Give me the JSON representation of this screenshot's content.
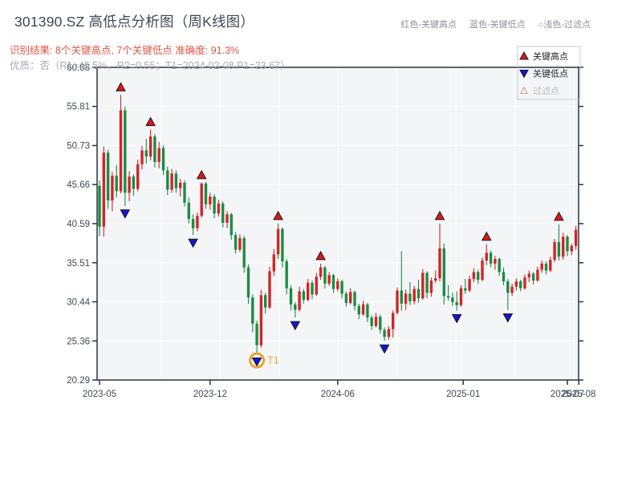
{
  "header": {
    "title": "301390.SZ 高低点分析图（周K线图）",
    "color_note": {
      "high": "红色-关键高点",
      "low": "蓝色-关键低点",
      "filter": "○浅色-过滤点"
    },
    "result_line": "识别结果: 8个关键高点, 7个关键低点  准确度: 91.3%",
    "quality_line": "优质：否（R1=45.5%，R2=0.55；T1=2024-02-08 P1=23.67）"
  },
  "chart_data": {
    "type": "candlestick",
    "title": "301390.SZ 高低点分析图（周K线图）",
    "symbol": "301390.SZ",
    "interval": "weekly",
    "accuracy": "91.3%",
    "key_high_count": 8,
    "key_low_count": 7,
    "ylim": [
      20.29,
      60.88
    ],
    "y_ticks": [
      60.88,
      55.81,
      50.73,
      45.66,
      40.59,
      35.51,
      30.44,
      25.36,
      20.29
    ],
    "x_ticks": [
      {
        "label": "2023-05",
        "index": 0
      },
      {
        "label": "2023-12",
        "index": 26
      },
      {
        "label": "2024-06",
        "index": 56
      },
      {
        "label": "2025-01",
        "index": 85.5
      },
      {
        "label": "2025-07",
        "index": 110
      },
      {
        "label": "2025-08",
        "index": 112.7
      }
    ],
    "grid": true,
    "legend": [
      {
        "label": "关键高点",
        "marker": "up-triangle",
        "color": "#e01616",
        "muted": false
      },
      {
        "label": "关键低点",
        "marker": "down-triangle",
        "color": "#1414d0",
        "muted": false
      },
      {
        "label": "过滤点",
        "marker": "open-triangle",
        "color": "#d4908c",
        "muted": true
      }
    ],
    "candles": [
      [
        45.5,
        46.2,
        39.0,
        40.2
      ],
      [
        40.2,
        50.6,
        38.9,
        49.8
      ],
      [
        49.8,
        50.2,
        42.5,
        43.6
      ],
      [
        43.6,
        47.3,
        42.2,
        46.8
      ],
      [
        46.8,
        48.2,
        44.0,
        44.8
      ],
      [
        44.8,
        57.3,
        44.5,
        55.3
      ],
      [
        55.3,
        55.8,
        42.9,
        44.6
      ],
      [
        44.6,
        47.4,
        43.5,
        46.7
      ],
      [
        46.7,
        47.0,
        44.2,
        45.1
      ],
      [
        45.1,
        48.9,
        44.8,
        48.3
      ],
      [
        48.3,
        50.7,
        47.6,
        50.1
      ],
      [
        50.1,
        51.6,
        48.4,
        49.3
      ],
      [
        49.3,
        52.8,
        48.8,
        51.9
      ],
      [
        51.9,
        52.2,
        47.9,
        48.6
      ],
      [
        48.6,
        51.2,
        47.8,
        50.4
      ],
      [
        50.4,
        50.8,
        46.9,
        47.5
      ],
      [
        47.5,
        48.0,
        44.3,
        45.0
      ],
      [
        45.0,
        47.7,
        44.6,
        47.1
      ],
      [
        47.1,
        47.5,
        44.6,
        45.2
      ],
      [
        45.2,
        46.4,
        44.1,
        45.9
      ],
      [
        45.9,
        46.2,
        42.8,
        43.3
      ],
      [
        43.3,
        44.0,
        40.6,
        41.2
      ],
      [
        41.2,
        41.8,
        39.1,
        40.0
      ],
      [
        40.0,
        42.0,
        39.6,
        41.6
      ],
      [
        41.6,
        45.9,
        41.4,
        45.8
      ],
      [
        45.8,
        46.0,
        42.5,
        43.1
      ],
      [
        43.1,
        44.6,
        42.4,
        44.1
      ],
      [
        44.1,
        44.4,
        41.3,
        41.9
      ],
      [
        41.9,
        43.7,
        41.5,
        43.2
      ],
      [
        43.2,
        43.5,
        40.1,
        40.7
      ],
      [
        40.7,
        42.2,
        40.0,
        41.8
      ],
      [
        41.8,
        42.0,
        38.5,
        39.1
      ],
      [
        39.1,
        39.5,
        36.7,
        37.2
      ],
      [
        37.2,
        39.2,
        36.9,
        38.7
      ],
      [
        38.7,
        39.0,
        34.2,
        34.9
      ],
      [
        34.9,
        35.3,
        30.2,
        31.0
      ],
      [
        31.0,
        31.4,
        26.5,
        27.6
      ],
      [
        27.6,
        28.0,
        23.67,
        24.8
      ],
      [
        24.8,
        32.0,
        24.5,
        31.3
      ],
      [
        31.3,
        31.6,
        28.9,
        29.7
      ],
      [
        29.7,
        35.0,
        29.5,
        34.4
      ],
      [
        34.4,
        37.3,
        33.8,
        36.6
      ],
      [
        36.6,
        40.6,
        36.0,
        39.9
      ],
      [
        39.9,
        40.1,
        34.9,
        35.7
      ],
      [
        35.7,
        36.0,
        31.4,
        32.2
      ],
      [
        32.2,
        32.6,
        29.3,
        30.1
      ],
      [
        30.1,
        30.4,
        28.4,
        29.4
      ],
      [
        29.4,
        32.4,
        29.2,
        31.8
      ],
      [
        31.8,
        32.1,
        30.2,
        30.7
      ],
      [
        30.7,
        33.4,
        30.5,
        32.9
      ],
      [
        32.9,
        33.2,
        30.8,
        31.4
      ],
      [
        31.4,
        34.2,
        31.2,
        33.7
      ],
      [
        33.7,
        35.4,
        33.3,
        34.9
      ],
      [
        34.9,
        35.1,
        32.2,
        32.8
      ],
      [
        32.8,
        34.3,
        32.5,
        33.9
      ],
      [
        33.9,
        34.1,
        31.6,
        32.1
      ],
      [
        32.1,
        33.5,
        31.8,
        33.1
      ],
      [
        33.1,
        33.3,
        30.9,
        31.5
      ],
      [
        31.5,
        31.8,
        29.8,
        30.3
      ],
      [
        30.3,
        32.2,
        30.1,
        31.7
      ],
      [
        31.7,
        31.9,
        29.3,
        29.9
      ],
      [
        29.9,
        30.2,
        28.2,
        28.8
      ],
      [
        28.8,
        30.6,
        28.6,
        30.1
      ],
      [
        30.1,
        30.3,
        27.8,
        28.4
      ],
      [
        28.4,
        28.7,
        26.8,
        27.3
      ],
      [
        27.3,
        29.0,
        27.1,
        28.5
      ],
      [
        28.5,
        28.8,
        26.3,
        26.8
      ],
      [
        26.8,
        27.1,
        25.36,
        25.9
      ],
      [
        25.9,
        27.3,
        25.5,
        26.9
      ],
      [
        26.9,
        29.3,
        25.8,
        29.0
      ],
      [
        29.0,
        32.3,
        28.8,
        31.9
      ],
      [
        31.9,
        37.0,
        29.3,
        30.2
      ],
      [
        30.2,
        32.0,
        29.4,
        31.5
      ],
      [
        31.5,
        33.0,
        30.0,
        30.5
      ],
      [
        30.5,
        32.5,
        30.1,
        32.1
      ],
      [
        32.1,
        33.3,
        30.3,
        30.9
      ],
      [
        30.9,
        34.7,
        30.7,
        34.2
      ],
      [
        34.2,
        34.4,
        30.9,
        31.6
      ],
      [
        31.6,
        33.6,
        31.1,
        33.2
      ],
      [
        33.2,
        34.5,
        32.9,
        33.5
      ],
      [
        33.5,
        40.6,
        33.1,
        37.4
      ],
      [
        37.4,
        38.0,
        30.1,
        31.2
      ],
      [
        31.2,
        32.6,
        30.6,
        31.0
      ],
      [
        31.0,
        31.6,
        29.9,
        30.4
      ],
      [
        30.4,
        31.8,
        29.3,
        30.0
      ],
      [
        30.0,
        32.6,
        29.8,
        32.2
      ],
      [
        32.2,
        33.4,
        31.5,
        31.9
      ],
      [
        31.9,
        33.8,
        31.7,
        33.4
      ],
      [
        33.4,
        34.8,
        33.0,
        34.3
      ],
      [
        34.3,
        34.6,
        32.8,
        33.3
      ],
      [
        33.3,
        36.2,
        33.1,
        35.8
      ],
      [
        35.8,
        37.9,
        35.2,
        36.8
      ],
      [
        36.8,
        37.1,
        34.9,
        35.4
      ],
      [
        35.4,
        36.4,
        34.6,
        36.0
      ],
      [
        36.0,
        36.2,
        33.8,
        34.3
      ],
      [
        34.3,
        34.9,
        32.6,
        33.1
      ],
      [
        33.1,
        33.4,
        29.4,
        31.6
      ],
      [
        31.6,
        32.8,
        31.2,
        32.4
      ],
      [
        32.4,
        33.5,
        31.9,
        33.1
      ],
      [
        33.1,
        33.3,
        31.8,
        32.2
      ],
      [
        32.2,
        34.0,
        32.0,
        33.6
      ],
      [
        33.6,
        34.5,
        33.0,
        34.1
      ],
      [
        34.1,
        34.3,
        32.7,
        33.2
      ],
      [
        33.2,
        35.0,
        33.0,
        34.6
      ],
      [
        34.6,
        35.8,
        34.2,
        35.4
      ],
      [
        35.4,
        35.7,
        34.0,
        34.5
      ],
      [
        34.5,
        36.3,
        34.3,
        35.9
      ],
      [
        35.9,
        38.6,
        35.6,
        38.2
      ],
      [
        38.2,
        40.5,
        35.8,
        36.3
      ],
      [
        36.3,
        39.4,
        35.9,
        38.9
      ],
      [
        38.9,
        39.1,
        36.4,
        37.0
      ],
      [
        37.0,
        38.0,
        36.5,
        37.7
      ],
      [
        37.7,
        40.3,
        37.2,
        39.8
      ]
    ],
    "key_highs": [
      {
        "index": 5,
        "price": 57.3
      },
      {
        "index": 12,
        "price": 52.8
      },
      {
        "index": 24,
        "price": 45.9
      },
      {
        "index": 42,
        "price": 40.6
      },
      {
        "index": 52,
        "price": 35.4
      },
      {
        "index": 80,
        "price": 40.6
      },
      {
        "index": 91,
        "price": 37.9
      },
      {
        "index": 108,
        "price": 40.5
      }
    ],
    "key_lows": [
      {
        "index": 6,
        "price": 42.9
      },
      {
        "index": 22,
        "price": 39.1
      },
      {
        "index": 37,
        "price": 23.67
      },
      {
        "index": 46,
        "price": 28.4
      },
      {
        "index": 67,
        "price": 25.36
      },
      {
        "index": 84,
        "price": 29.3
      },
      {
        "index": 96,
        "price": 29.4
      }
    ],
    "t1_annotation": {
      "index": 37,
      "price": 23.67,
      "label": "T1",
      "date": "2024-02-08",
      "color": "#f0a132"
    },
    "colors": {
      "up": "#d02626",
      "down": "#1d8b46",
      "key_high": "#e01616",
      "key_low": "#1414d0",
      "plot_bg": "#f4f5f7",
      "axis": "#2b3440",
      "grid": "#ffffff",
      "tick_label": "#3f4856",
      "result_text": "#e15549",
      "quality_text": "#a6abb3"
    }
  }
}
